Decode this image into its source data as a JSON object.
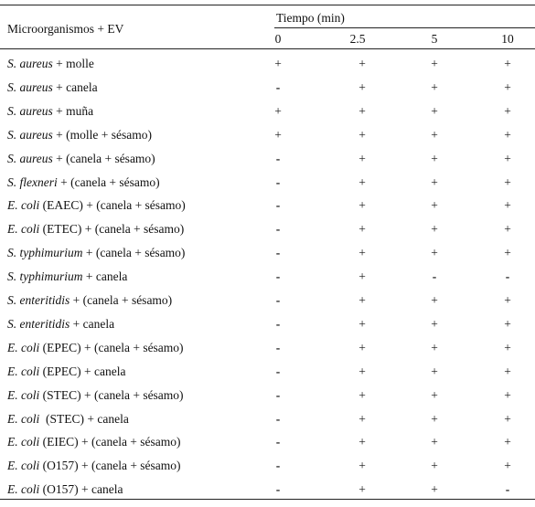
{
  "table": {
    "header": {
      "first_column": "Microorganismos + EV",
      "group": "Tiempo (min)",
      "times": [
        "0",
        "2.5",
        "5",
        "10"
      ]
    },
    "rows": [
      {
        "organism": "S. aureus",
        "rest": " + molle",
        "marks": [
          "+",
          "+",
          "+",
          "+"
        ]
      },
      {
        "organism": "S. aureus",
        "rest": " + canela",
        "marks": [
          "-",
          "+",
          "+",
          "+"
        ]
      },
      {
        "organism": "S. aureus",
        "rest": " + muña",
        "marks": [
          "+",
          "+",
          "+",
          "+"
        ]
      },
      {
        "organism": "S. aureus",
        "rest": " + (molle + sésamo)",
        "marks": [
          "+",
          "+",
          "+",
          "+"
        ]
      },
      {
        "organism": "S. aureus",
        "rest": " + (canela + sésamo)",
        "marks": [
          "-",
          "+",
          "+",
          "+"
        ]
      },
      {
        "organism": "S. flexneri",
        "rest": " + (canela + sésamo)",
        "marks": [
          "-",
          "+",
          "+",
          "+"
        ]
      },
      {
        "organism": "E. coli",
        "rest": " (EAEC) + (canela + sésamo)",
        "marks": [
          "-",
          "+",
          "+",
          "+"
        ]
      },
      {
        "organism": "E. coli",
        "rest": " (ETEC) + (canela + sésamo)",
        "marks": [
          "-",
          "+",
          "+",
          "+"
        ]
      },
      {
        "organism": "S. typhimurium",
        "rest": " + (canela + sésamo)",
        "marks": [
          "-",
          "+",
          "+",
          "+"
        ]
      },
      {
        "organism": "S. typhimurium",
        "rest": " + canela",
        "marks": [
          "-",
          "+",
          "-",
          "-"
        ]
      },
      {
        "organism": "S. enteritidis",
        "rest": " + (canela + sésamo)",
        "marks": [
          "-",
          "+",
          "+",
          "+"
        ]
      },
      {
        "organism": "S. enteritidis",
        "rest": " + canela",
        "marks": [
          "-",
          "+",
          "+",
          "+"
        ]
      },
      {
        "organism": "E. coli",
        "rest": " (EPEC) + (canela + sésamo)",
        "marks": [
          "-",
          "+",
          "+",
          "+"
        ]
      },
      {
        "organism": "E. coli",
        "rest": " (EPEC) + canela",
        "marks": [
          "-",
          "+",
          "+",
          "+"
        ]
      },
      {
        "organism": "E. coli",
        "rest": " (STEC) + (canela + sésamo)",
        "marks": [
          "-",
          "+",
          "+",
          "+"
        ]
      },
      {
        "organism": "E. coli",
        "rest": "  (STEC) + canela",
        "marks": [
          "-",
          "+",
          "+",
          "+"
        ]
      },
      {
        "organism": "E. coli",
        "rest": " (EIEC) + (canela + sésamo)",
        "marks": [
          "-",
          "+",
          "+",
          "+"
        ]
      },
      {
        "organism": "E. coli",
        "rest": " (O157) + (canela + sésamo)",
        "marks": [
          "-",
          "+",
          "+",
          "+"
        ]
      },
      {
        "organism": "E. coli",
        "rest": " (O157) + canela",
        "marks": [
          "-",
          "+",
          "+",
          "-"
        ]
      }
    ]
  }
}
